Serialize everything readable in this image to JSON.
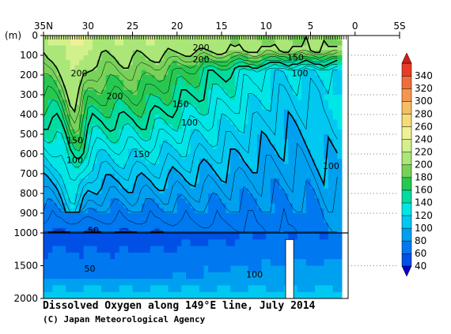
{
  "chart_data": {
    "type": "heatmap",
    "title": "Dissolved Oxygen along 149°E line, July 2014",
    "credit": "(C) Japan Meteorological Agency",
    "x_ticks": [
      "35N",
      "30",
      "25",
      "20",
      "15",
      "10",
      "5",
      "0",
      "5S"
    ],
    "x_tick_values": [
      35,
      30,
      25,
      20,
      15,
      10,
      5,
      0,
      -5
    ],
    "x_range": [
      35,
      -5
    ],
    "y_unit_label": "(m)",
    "y_ticks_upper": [
      "0",
      "100",
      "200",
      "300",
      "400",
      "500",
      "600",
      "700",
      "800",
      "900",
      "1000"
    ],
    "y_ticks_lower": [
      "1500",
      "2000"
    ],
    "y_range": [
      0,
      2000
    ],
    "y_break_depth": 1000,
    "colorbar": {
      "levels": [
        "40",
        "60",
        "80",
        "100",
        "120",
        "140",
        "160",
        "180",
        "200",
        "220",
        "240",
        "260",
        "280",
        "300",
        "320",
        "340"
      ],
      "colors": [
        "#0050e6",
        "#0078f0",
        "#00a0f0",
        "#00c8f0",
        "#00e6e6",
        "#00dca0",
        "#28c850",
        "#78d25a",
        "#aae678",
        "#d2f08c",
        "#f0f096",
        "#f5dc78",
        "#f5be64",
        "#f59650",
        "#f06e3c",
        "#e63c28"
      ],
      "below_color": "#0000c8",
      "above_color": "#d21e14"
    },
    "contour_labels": [
      {
        "text": "200",
        "lat": 17.3,
        "depth": 60
      },
      {
        "text": "200",
        "lat": 17.3,
        "depth": 120
      },
      {
        "text": "150",
        "lat": 6.7,
        "depth": 110
      },
      {
        "text": "100",
        "lat": 6.2,
        "depth": 190
      },
      {
        "text": "200",
        "lat": 31.0,
        "depth": 190
      },
      {
        "text": "200",
        "lat": 27.0,
        "depth": 305
      },
      {
        "text": "150",
        "lat": 19.6,
        "depth": 345
      },
      {
        "text": "100",
        "lat": 18.6,
        "depth": 440
      },
      {
        "text": "150",
        "lat": 31.5,
        "depth": 530
      },
      {
        "text": "100",
        "lat": 31.5,
        "depth": 630
      },
      {
        "text": "150",
        "lat": 24.0,
        "depth": 600
      },
      {
        "text": "100",
        "lat": 2.7,
        "depth": 660
      },
      {
        "text": "50",
        "lat": 29.4,
        "depth": 985
      },
      {
        "text": "50",
        "lat": 29.8,
        "depth": 1540
      },
      {
        "text": "100",
        "lat": 11.3,
        "depth": 1630
      }
    ]
  }
}
